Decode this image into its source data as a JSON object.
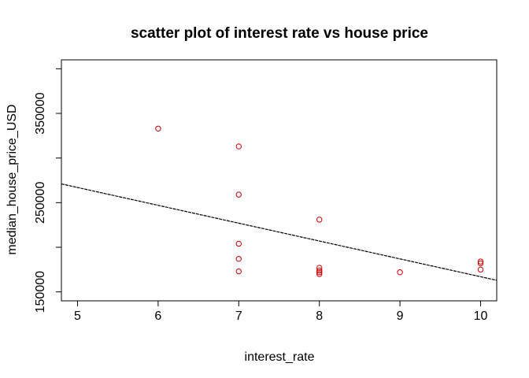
{
  "chart_data": {
    "type": "scatter",
    "title": "scatter plot of interest rate vs house price",
    "xlabel": "interest_rate",
    "ylabel": "median_house_price_USD",
    "xlim": [
      4.8,
      10.2
    ],
    "ylim": [
      140000,
      410000
    ],
    "x_ticks": [
      5,
      6,
      7,
      8,
      9,
      10
    ],
    "y_ticks": [
      150000,
      250000,
      350000
    ],
    "grid": false,
    "point_color": "#cc0000",
    "line_color": "#000000",
    "points": [
      {
        "x": 6,
        "y": 333000
      },
      {
        "x": 7,
        "y": 313000
      },
      {
        "x": 7,
        "y": 259000
      },
      {
        "x": 7,
        "y": 204000
      },
      {
        "x": 7,
        "y": 187000
      },
      {
        "x": 7,
        "y": 173000
      },
      {
        "x": 8,
        "y": 231000
      },
      {
        "x": 8,
        "y": 177000
      },
      {
        "x": 8,
        "y": 174000
      },
      {
        "x": 8,
        "y": 172000
      },
      {
        "x": 8,
        "y": 170000
      },
      {
        "x": 9,
        "y": 172000
      },
      {
        "x": 10,
        "y": 184000
      },
      {
        "x": 10,
        "y": 182000
      },
      {
        "x": 10,
        "y": 175000
      }
    ],
    "regression_line": {
      "intercept": 367000,
      "slope": -20000
    }
  }
}
